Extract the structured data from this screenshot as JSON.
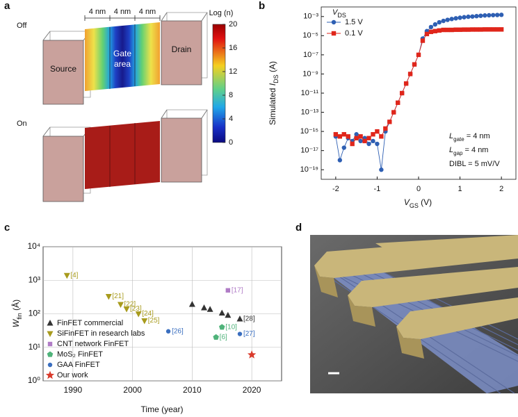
{
  "panel_labels": [
    "a",
    "b",
    "c",
    "d"
  ],
  "panel_a": {
    "states": [
      "Off",
      "On"
    ],
    "dimensions": [
      "4 nm",
      "4 nm",
      "4 nm"
    ],
    "source_label": "Source",
    "gate_label": [
      "Gate",
      "area"
    ],
    "drain_label": "Drain",
    "colorbar": {
      "title": "Log (n)",
      "lim": [
        0,
        20
      ],
      "ticks": [
        0,
        4,
        8,
        12,
        16,
        20
      ]
    }
  },
  "chart_data": [
    {
      "type": "line",
      "x": [
        -2,
        -1.9,
        -1.8,
        -1.7,
        -1.6,
        -1.5,
        -1.4,
        -1.3,
        -1.2,
        -1.1,
        -1,
        -0.9,
        -0.8,
        -0.7,
        -0.6,
        -0.5,
        -0.4,
        -0.3,
        -0.2,
        -0.1,
        0,
        0.1,
        0.2,
        0.3,
        0.4,
        0.5,
        0.6,
        0.7,
        0.8,
        0.9,
        1,
        1.1,
        1.2,
        1.3,
        1.4,
        1.5,
        1.6,
        1.7,
        1.8,
        1.9,
        2
      ],
      "xlim": [
        -2.35,
        2.35
      ],
      "xticks": [
        -2,
        -1,
        0,
        1,
        2
      ],
      "xlabel": [
        "V",
        "GS",
        " (V)"
      ],
      "ylabel": [
        "Simulated ",
        "I",
        "DS",
        " (A)"
      ],
      "log_y": true,
      "ylim": [
        1e-20,
        0.01
      ],
      "yticks": [
        {
          "value": 0.001,
          "label": "10⁻³"
        },
        {
          "value": 1e-05,
          "label": "10⁻⁵"
        },
        {
          "value": 1e-07,
          "label": "10⁻⁷"
        },
        {
          "value": 1e-09,
          "label": "10⁻⁹"
        },
        {
          "value": 1e-11,
          "label": "10⁻¹¹"
        },
        {
          "value": 1e-13,
          "label": "10⁻¹³"
        },
        {
          "value": 1e-15,
          "label": "10⁻¹⁵"
        },
        {
          "value": 1e-17,
          "label": "10⁻¹⁷"
        },
        {
          "value": 1e-19,
          "label": "10⁻¹⁹"
        }
      ],
      "legend": "upper left",
      "legend_title": [
        "V",
        "DS"
      ],
      "series": [
        {
          "name": "1.5 V",
          "color": "#2e5fb3",
          "marker": "circle",
          "values": [
            3e-16,
            1e-18,
            2e-17,
            2e-16,
            1e-16,
            5e-16,
            1e-16,
            2e-16,
            5e-17,
            1e-16,
            5e-17,
            1e-19,
            1e-15,
            1e-14,
            1e-13,
            1e-12,
            1e-11,
            1e-10,
            1e-09,
            1e-08,
            1e-07,
            5e-06,
            3e-05,
            8e-05,
            0.00015,
            0.00025,
            0.00035,
            0.00045,
            0.00055,
            0.00065,
            0.00075,
            0.00085,
            0.00095,
            0.001,
            0.0011,
            0.0012,
            0.0013,
            0.00135,
            0.0014,
            0.00145,
            0.0015
          ]
        },
        {
          "name": "0.1 V",
          "color": "#e0261b",
          "marker": "square",
          "values": [
            5e-16,
            3e-16,
            5e-16,
            3e-16,
            5e-17,
            2e-16,
            3e-16,
            1e-16,
            2e-16,
            5e-16,
            1e-15,
            3e-16,
            2e-15,
            1e-14,
            1e-13,
            1e-12,
            1e-11,
            1e-10,
            1e-09,
            1e-08,
            1e-07,
            3e-06,
            1.5e-05,
            2.5e-05,
            3e-05,
            3.5e-05,
            4e-05,
            4e-05,
            4e-05,
            4.2e-05,
            4.2e-05,
            4.3e-05,
            4.3e-05,
            4.4e-05,
            4.4e-05,
            4.4e-05,
            4.5e-05,
            4.5e-05,
            4.5e-05,
            4.5e-05,
            4.5e-05
          ]
        }
      ],
      "annotations": [
        [
          "L",
          "gate",
          " = 4 nm"
        ],
        [
          "L",
          "gap",
          " = 4 nm"
        ],
        [
          "DIBL = 5 mV/V"
        ]
      ]
    },
    {
      "type": "scatter",
      "xlim": [
        1985,
        2025
      ],
      "xticks": [
        1990,
        2000,
        2010,
        2020
      ],
      "xlabel": "Time (year)",
      "ylabel": [
        "W",
        "fin",
        " (Å)"
      ],
      "log_y": true,
      "ylim": [
        1,
        10000
      ],
      "yticks": [
        {
          "value": 1,
          "label": "10⁰"
        },
        {
          "value": 10,
          "label": "10¹"
        },
        {
          "value": 100,
          "label": "10²"
        },
        {
          "value": 1000,
          "label": "10³"
        },
        {
          "value": 10000,
          "label": "10⁴"
        }
      ],
      "grid": true,
      "legend": "lower left",
      "series": [
        {
          "name": "FinFET commercial",
          "color": "#333333",
          "marker": "triangle-up",
          "x": [
            2010,
            2012,
            2013,
            2015,
            2016,
            2018
          ],
          "values": [
            190,
            150,
            135,
            105,
            90,
            70
          ],
          "point_labels": [
            null,
            null,
            null,
            null,
            null,
            "[28]"
          ]
        },
        {
          "name": "SiFinFET in research labs",
          "color": "#a89b1d",
          "marker": "triangle-down",
          "x": [
            1989,
            1996,
            1998,
            1999,
            2001,
            2002
          ],
          "values": [
            1400,
            330,
            190,
            140,
            100,
            62
          ],
          "point_labels": [
            "[4]",
            "[21]",
            "[22]",
            "[23]",
            "[24]",
            "[25]"
          ]
        },
        {
          "name": "CNT network FinFET",
          "color": "#b07cc6",
          "marker": "square",
          "x": [
            2016
          ],
          "values": [
            500
          ],
          "point_labels": [
            "[17]"
          ]
        },
        {
          "name": "MoS₂ FinFET",
          "color": "#4fb37a",
          "marker": "pentagon",
          "x": [
            2015,
            2014
          ],
          "values": [
            40,
            20
          ],
          "point_labels": [
            "[10]",
            "[6]"
          ]
        },
        {
          "name": "GAA FinFET",
          "color": "#3a6ebf",
          "marker": "circle",
          "x": [
            2006,
            2018
          ],
          "values": [
            30,
            25
          ],
          "point_labels": [
            "[26]",
            "[27]"
          ]
        },
        {
          "name": "Our work",
          "color": "#d93a2b",
          "marker": "star",
          "x": [
            2020
          ],
          "values": [
            6
          ],
          "point_labels": [
            null
          ]
        }
      ]
    }
  ]
}
